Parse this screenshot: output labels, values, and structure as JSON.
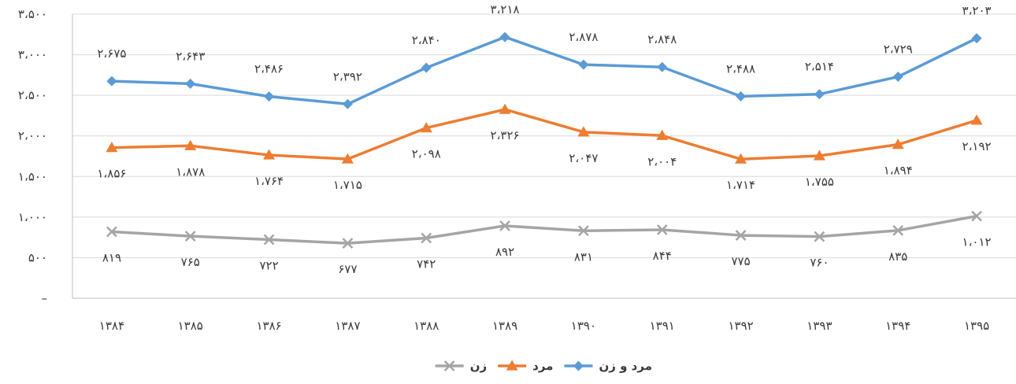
{
  "chart_data": {
    "type": "line",
    "categories": [
      "۱۳۸۴",
      "۱۳۸۵",
      "۱۳۸۶",
      "۱۳۸۷",
      "۱۳۸۸",
      "۱۳۸۹",
      "۱۳۹۰",
      "۱۳۹۱",
      "۱۳۹۲",
      "۱۳۹۳",
      "۱۳۹۴",
      "۱۳۹۵"
    ],
    "ylim": [
      0,
      3500
    ],
    "y_ticks": [
      {
        "value": 0,
        "label": "–"
      },
      {
        "value": 500,
        "label": "۵۰۰"
      },
      {
        "value": 1000,
        "label": "۱،۰۰۰"
      },
      {
        "value": 1500,
        "label": "۱،۵۰۰"
      },
      {
        "value": 2000,
        "label": "۲،۰۰۰"
      },
      {
        "value": 2500,
        "label": "۲،۵۰۰"
      },
      {
        "value": 3000,
        "label": "۳،۰۰۰"
      },
      {
        "value": 3500,
        "label": "۳،۵۰۰"
      }
    ],
    "grid": true,
    "legend_position": "bottom",
    "series": [
      {
        "name": "مرد و زن",
        "color": "#5b9bd5",
        "marker": "diamond",
        "label_position": "above",
        "values": [
          2675,
          2643,
          2486,
          2392,
          2840,
          3218,
          2878,
          2848,
          2488,
          2514,
          2729,
          3203
        ],
        "labels": [
          "۲،۶۷۵",
          "۲،۶۴۳",
          "۲،۴۸۶",
          "۲،۳۹۲",
          "۲،۸۴۰",
          "۳،۲۱۸",
          "۲،۸۷۸",
          "۲،۸۴۸",
          "۲،۴۸۸",
          "۲،۵۱۴",
          "۲،۷۲۹",
          "۳،۲۰۳"
        ]
      },
      {
        "name": "مرد",
        "color": "#ed7d31",
        "marker": "triangle",
        "label_position": "below",
        "values": [
          1856,
          1878,
          1764,
          1715,
          2098,
          2326,
          2047,
          2004,
          1714,
          1755,
          1894,
          2192
        ],
        "labels": [
          "۱،۸۵۶",
          "۱،۸۷۸",
          "۱،۷۶۴",
          "۱،۷۱۵",
          "۲،۰۹۸",
          "۲،۳۲۶",
          "۲،۰۴۷",
          "۲،۰۰۴",
          "۱،۷۱۴",
          "۱،۷۵۵",
          "۱،۸۹۴",
          "۲،۱۹۲"
        ]
      },
      {
        "name": "زن",
        "color": "#a5a5a5",
        "marker": "x",
        "label_position": "below",
        "values": [
          819,
          765,
          722,
          677,
          742,
          892,
          831,
          844,
          775,
          760,
          835,
          1012
        ],
        "labels": [
          "۸۱۹",
          "۷۶۵",
          "۷۲۲",
          "۶۷۷",
          "۷۴۲",
          "۸۹۲",
          "۸۳۱",
          "۸۴۴",
          "۷۷۵",
          "۷۶۰",
          "۸۳۵",
          "۱،۰۱۲"
        ]
      }
    ]
  }
}
